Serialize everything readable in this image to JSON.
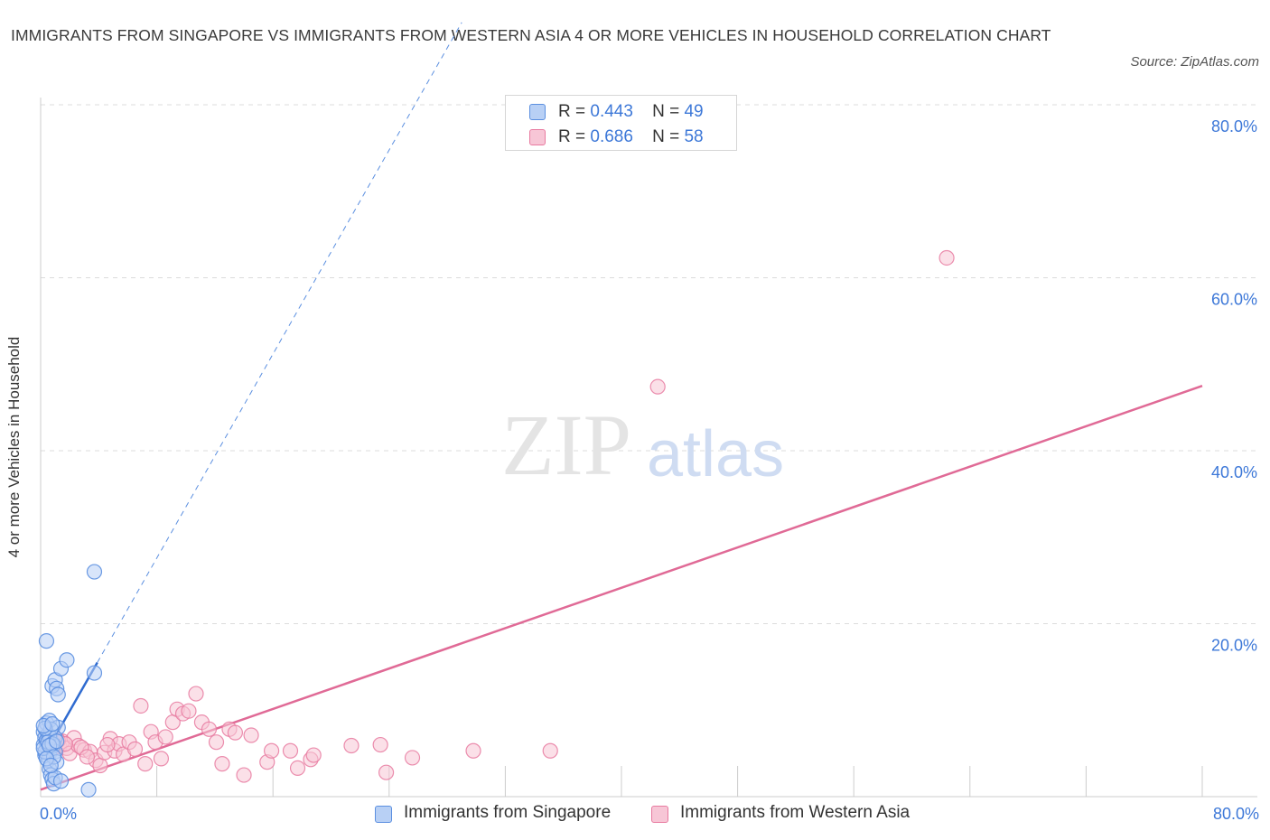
{
  "title": "IMMIGRANTS FROM SINGAPORE VS IMMIGRANTS FROM WESTERN ASIA 4 OR MORE VEHICLES IN HOUSEHOLD CORRELATION CHART",
  "source": "Source: ZipAtlas.com",
  "watermark": {
    "zip": "ZIP",
    "atlas": "atlas"
  },
  "legend": {
    "singapore": {
      "r_label": "R =",
      "r": "0.443",
      "n_label": "N =",
      "n": "49"
    },
    "western_asia": {
      "r_label": "R =",
      "r": "0.686",
      "n_label": "N =",
      "n": "58"
    }
  },
  "colors": {
    "singapore": "#5b8fe0",
    "singapore_fill": "#b8d0f5",
    "western_asia": "#e87aa0",
    "western_asia_fill": "#f7c6d6",
    "grid": "#dcdcdc",
    "tick_label": "#3d78d8"
  },
  "chart_data": {
    "type": "scatter",
    "title": "IMMIGRANTS FROM SINGAPORE VS IMMIGRANTS FROM WESTERN ASIA 4 OR MORE VEHICLES IN HOUSEHOLD CORRELATION CHART",
    "xlabel": "",
    "ylabel": "4 or more Vehicles in Household",
    "xlim": [
      0,
      80
    ],
    "ylim": [
      0,
      80
    ],
    "x_tick_labels": [
      "0.0%",
      "80.0%"
    ],
    "y_ticks": [
      20,
      40,
      60,
      80
    ],
    "y_tick_labels": [
      "20.0%",
      "40.0%",
      "60.0%",
      "80.0%"
    ],
    "grid": true,
    "legend_position": "top-center",
    "series": [
      {
        "name": "Immigrants from Singapore",
        "r": 0.443,
        "n": 49,
        "trend": {
          "x0": 0,
          "y0": 4.0,
          "x1": 3.9,
          "y1": 15.5,
          "dashed_to_x": 29
        },
        "points": [
          [
            0.2,
            7.5
          ],
          [
            0.3,
            6.8
          ],
          [
            0.4,
            6.2
          ],
          [
            0.5,
            5.5
          ],
          [
            0.6,
            5.0
          ],
          [
            0.3,
            4.8
          ],
          [
            0.2,
            6.0
          ],
          [
            0.5,
            7.2
          ],
          [
            0.4,
            8.5
          ],
          [
            0.6,
            8.8
          ],
          [
            0.7,
            6.5
          ],
          [
            0.8,
            5.8
          ],
          [
            0.5,
            4.2
          ],
          [
            0.6,
            3.2
          ],
          [
            0.7,
            2.5
          ],
          [
            0.8,
            2.0
          ],
          [
            0.9,
            1.5
          ],
          [
            1.0,
            2.2
          ],
          [
            0.4,
            18.0
          ],
          [
            0.8,
            12.8
          ],
          [
            1.0,
            13.5
          ],
          [
            1.1,
            12.5
          ],
          [
            1.2,
            11.8
          ],
          [
            1.4,
            14.8
          ],
          [
            1.8,
            15.8
          ],
          [
            3.7,
            26.0
          ],
          [
            3.7,
            14.3
          ],
          [
            1.4,
            1.8
          ],
          [
            3.3,
            0.8
          ],
          [
            1.2,
            8.0
          ],
          [
            1.0,
            6.8
          ],
          [
            0.9,
            6.0
          ],
          [
            1.0,
            5.2
          ],
          [
            1.1,
            4.0
          ],
          [
            0.3,
            5.2
          ],
          [
            0.4,
            6.5
          ],
          [
            0.6,
            7.0
          ],
          [
            0.7,
            7.8
          ],
          [
            0.2,
            5.6
          ],
          [
            0.5,
            6.3
          ],
          [
            0.8,
            6.1
          ],
          [
            0.3,
            7.9
          ],
          [
            0.6,
            5.9
          ],
          [
            0.9,
            4.6
          ],
          [
            0.4,
            4.4
          ],
          [
            0.7,
            3.6
          ],
          [
            1.1,
            6.4
          ],
          [
            0.2,
            8.2
          ],
          [
            0.8,
            8.4
          ]
        ]
      },
      {
        "name": "Immigrants from Western Asia",
        "r": 0.686,
        "n": 58,
        "trend": {
          "x0": 0,
          "y0": 0.8,
          "x1": 80,
          "y1": 47.5
        },
        "points": [
          [
            0.5,
            6.0
          ],
          [
            0.8,
            5.5
          ],
          [
            1.0,
            6.2
          ],
          [
            1.3,
            5.8
          ],
          [
            1.5,
            6.4
          ],
          [
            1.8,
            5.6
          ],
          [
            2.0,
            5.0
          ],
          [
            2.3,
            6.8
          ],
          [
            2.6,
            5.9
          ],
          [
            3.0,
            5.4
          ],
          [
            3.4,
            5.2
          ],
          [
            3.8,
            4.2
          ],
          [
            4.1,
            3.6
          ],
          [
            4.4,
            5.1
          ],
          [
            4.8,
            6.7
          ],
          [
            5.1,
            5.3
          ],
          [
            5.4,
            6.1
          ],
          [
            5.7,
            4.9
          ],
          [
            6.1,
            6.3
          ],
          [
            6.5,
            5.5
          ],
          [
            6.9,
            10.5
          ],
          [
            7.2,
            3.8
          ],
          [
            7.6,
            7.5
          ],
          [
            7.9,
            6.3
          ],
          [
            8.3,
            4.4
          ],
          [
            8.6,
            6.9
          ],
          [
            9.1,
            8.6
          ],
          [
            9.4,
            10.1
          ],
          [
            9.8,
            9.6
          ],
          [
            10.2,
            9.9
          ],
          [
            10.7,
            11.9
          ],
          [
            11.1,
            8.6
          ],
          [
            11.6,
            7.8
          ],
          [
            12.1,
            6.3
          ],
          [
            12.5,
            3.8
          ],
          [
            13.0,
            7.8
          ],
          [
            13.4,
            7.4
          ],
          [
            14.0,
            2.5
          ],
          [
            14.5,
            7.1
          ],
          [
            15.6,
            4.0
          ],
          [
            15.9,
            5.3
          ],
          [
            17.2,
            5.3
          ],
          [
            17.7,
            3.3
          ],
          [
            18.6,
            4.3
          ],
          [
            18.8,
            4.8
          ],
          [
            21.4,
            5.9
          ],
          [
            23.4,
            6.0
          ],
          [
            23.8,
            2.8
          ],
          [
            25.6,
            4.5
          ],
          [
            29.8,
            5.3
          ],
          [
            35.1,
            5.3
          ],
          [
            42.5,
            47.4
          ],
          [
            62.4,
            62.3
          ],
          [
            1.2,
            6.5
          ],
          [
            2.8,
            5.7
          ],
          [
            3.2,
            4.6
          ],
          [
            4.6,
            6.0
          ],
          [
            1.7,
            6.1
          ]
        ]
      }
    ]
  },
  "bottom_legend": {
    "singapore_label": "Immigrants from Singapore",
    "western_asia_label": "Immigrants from Western Asia"
  }
}
